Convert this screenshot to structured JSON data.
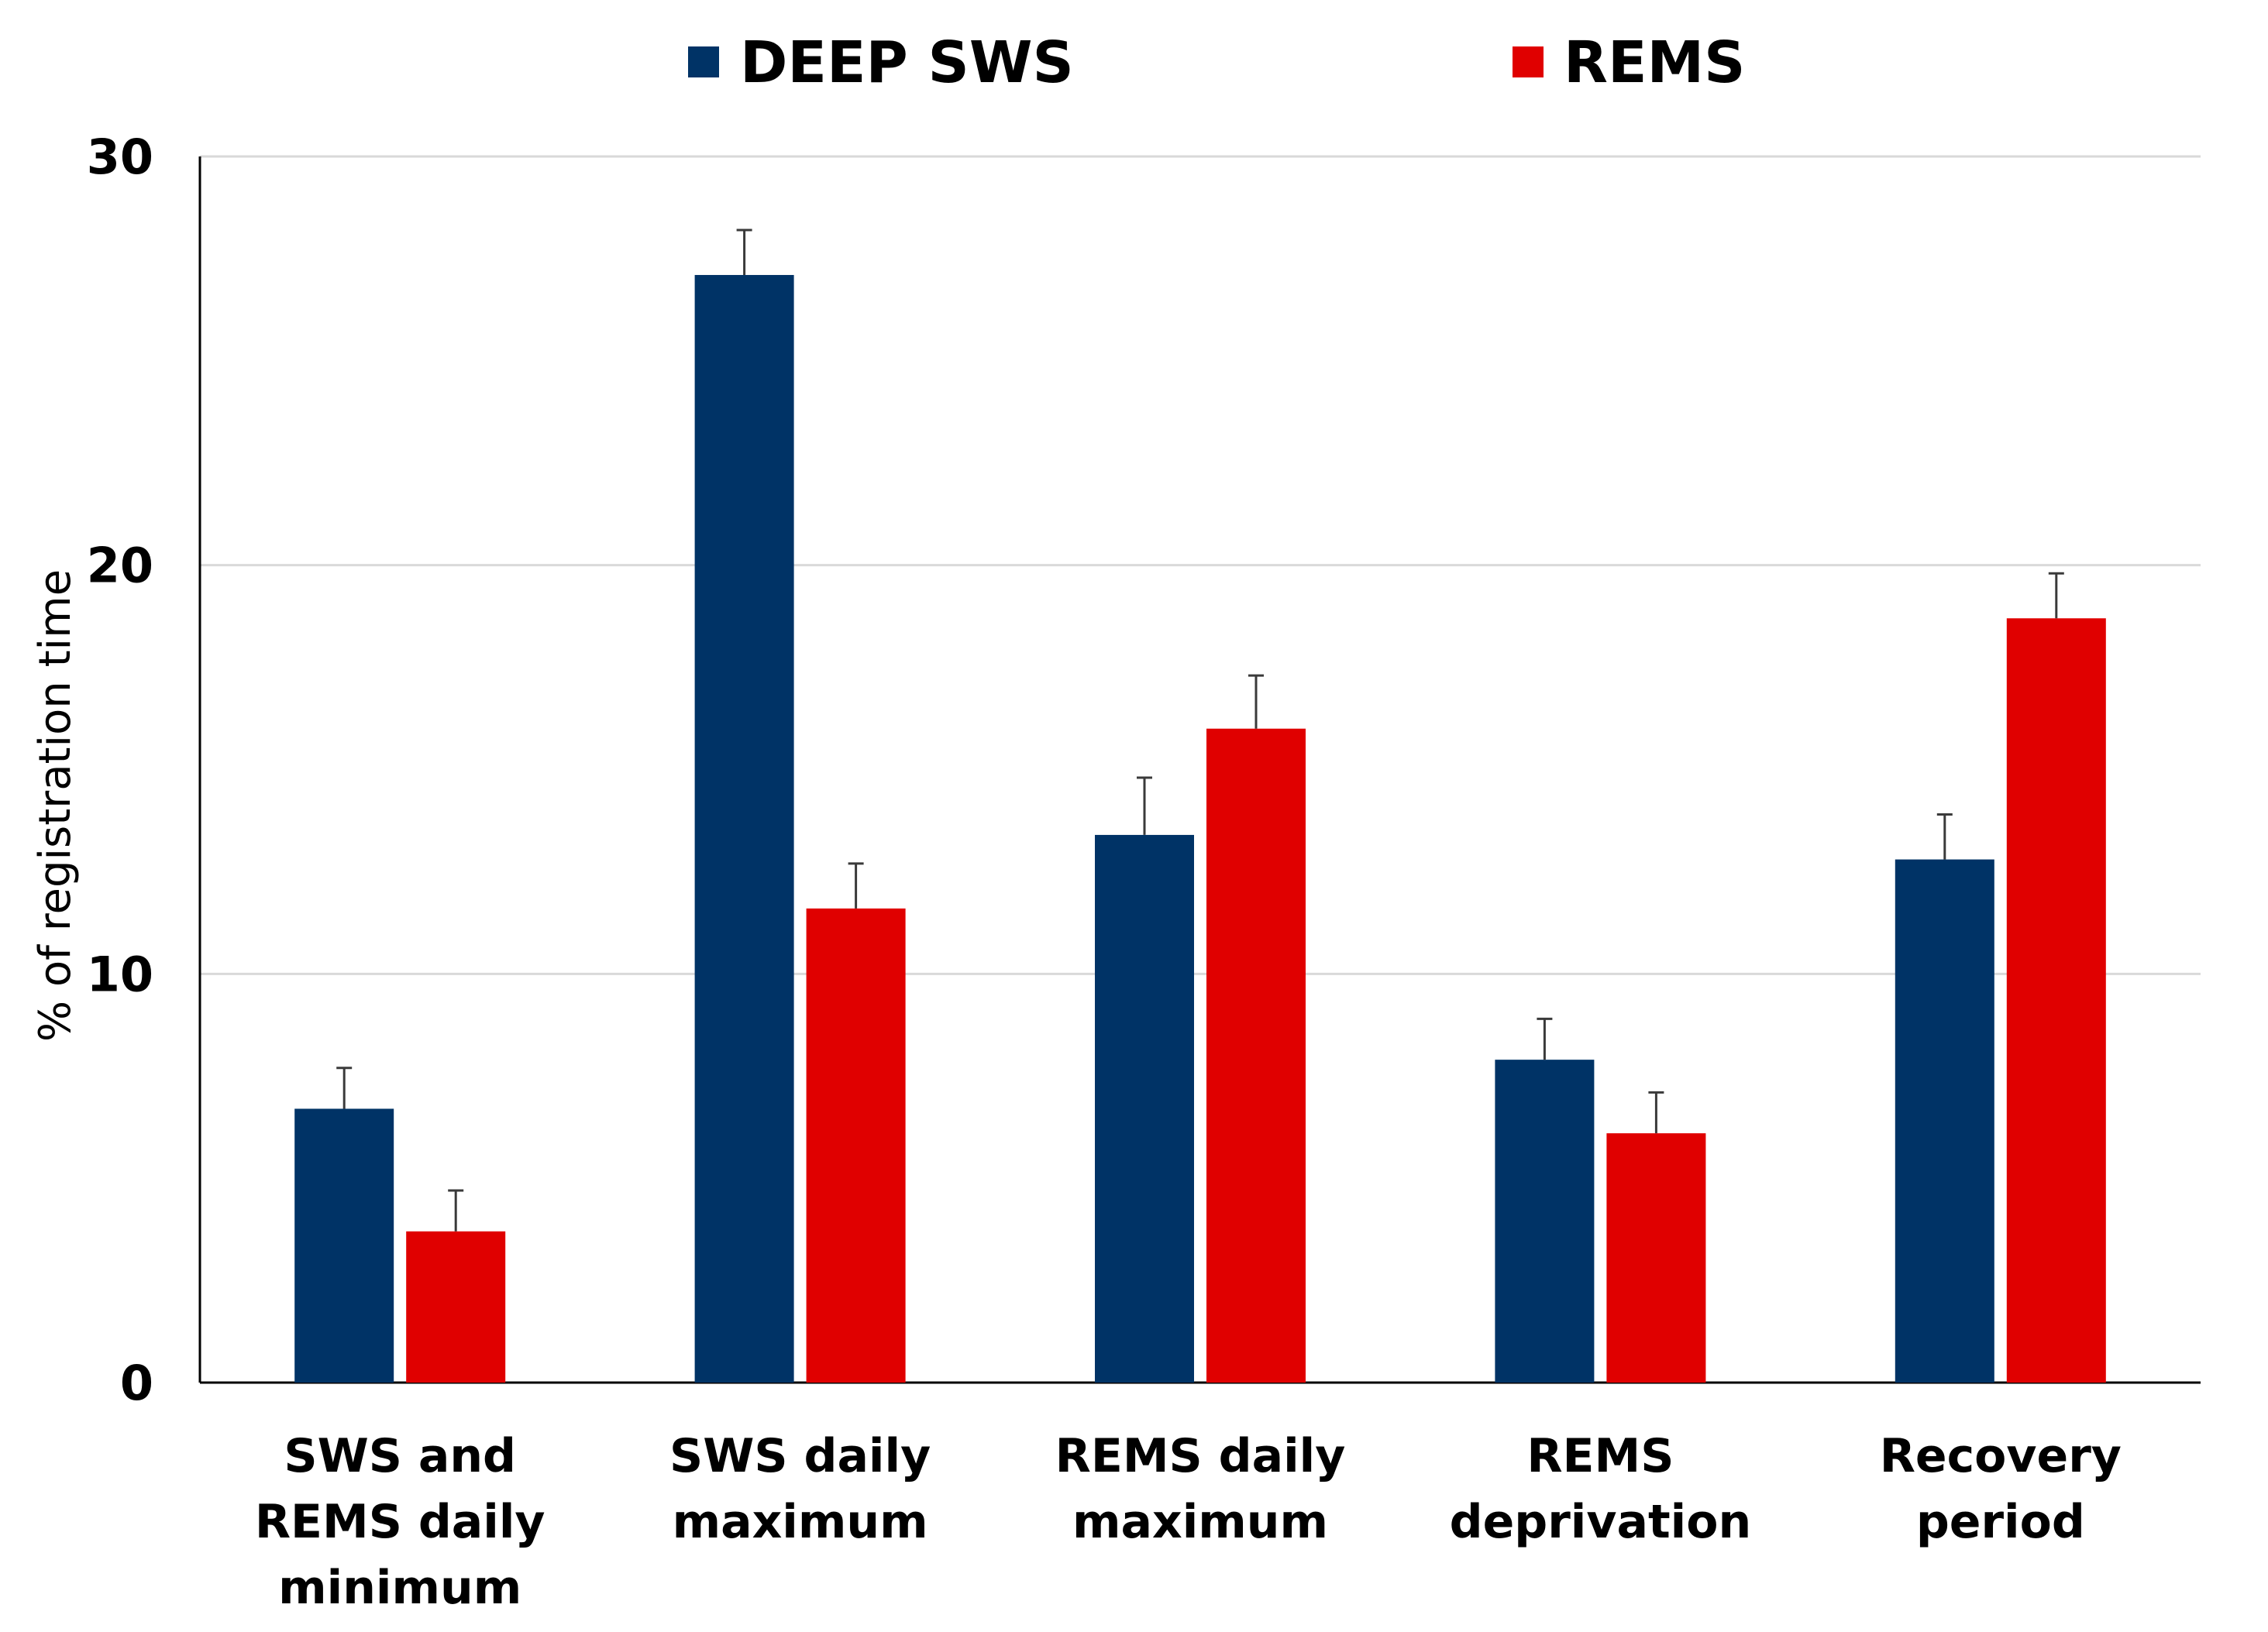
{
  "chart_data": {
    "type": "bar",
    "title": "",
    "xlabel": "",
    "ylabel": "% of registration time",
    "ylim": [
      0,
      30
    ],
    "yticks": [
      0,
      10,
      20,
      30
    ],
    "grid": true,
    "legend_position": "top",
    "categories": [
      [
        "SWS and",
        "REMS daily",
        "minimum"
      ],
      [
        "SWS daily",
        "maximum"
      ],
      [
        "REMS daily",
        "maximum"
      ],
      [
        "REMS",
        "deprivation"
      ],
      [
        "Recovery",
        "period"
      ]
    ],
    "series": [
      {
        "name": "DEEP SWS",
        "color": "#003366",
        "values": [
          6.7,
          27.1,
          13.4,
          7.9,
          12.8
        ],
        "errors": [
          1.0,
          1.1,
          1.4,
          1.0,
          1.1
        ]
      },
      {
        "name": "REMS",
        "color": "#E00000",
        "values": [
          3.7,
          11.6,
          16.0,
          6.1,
          18.7
        ],
        "errors": [
          1.0,
          1.1,
          1.3,
          1.0,
          1.1
        ]
      }
    ]
  }
}
